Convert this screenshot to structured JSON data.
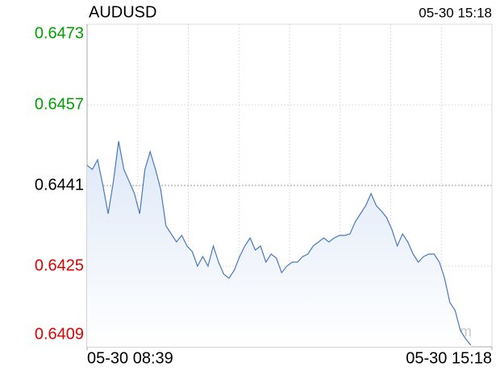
{
  "chart_data": {
    "type": "line",
    "title": "AUDUSD",
    "timestamp": "05-30 15:18",
    "watermark": "sina.com",
    "color": "#4a78bd",
    "area": true,
    "up_color": "#00a000",
    "down_color": "#e00000",
    "flat_color": "#000000",
    "reference": 0.6441,
    "ylim": [
      0.6409,
      0.6473
    ],
    "yticks": [
      0.6409,
      0.6425,
      0.6441,
      0.6457,
      0.6473
    ],
    "xlim": [
      0,
      77
    ],
    "xticks": [
      {
        "value": 0,
        "label": "05-30 08:39"
      },
      {
        "value": 77,
        "label": "05-30 15:18"
      }
    ],
    "x_grid_divisions": 8,
    "grid": true,
    "values": [
      0.6445,
      0.64442,
      0.64461,
      0.6441,
      0.64354,
      0.64418,
      0.64498,
      0.64442,
      0.64418,
      0.64394,
      0.64354,
      0.64442,
      0.64477,
      0.64442,
      0.64402,
      0.6433,
      0.64314,
      0.64298,
      0.64311,
      0.6429,
      0.64279,
      0.6425,
      0.64269,
      0.6425,
      0.6429,
      0.64258,
      0.64234,
      0.64226,
      0.64242,
      0.64269,
      0.6429,
      0.64306,
      0.64282,
      0.6429,
      0.64258,
      0.64274,
      0.64266,
      0.64237,
      0.6425,
      0.64258,
      0.64258,
      0.64269,
      0.64274,
      0.6429,
      0.64298,
      0.64306,
      0.64298,
      0.64306,
      0.64311,
      0.64311,
      0.64314,
      0.64338,
      0.64354,
      0.6437,
      0.64394,
      0.6437,
      0.64359,
      0.64346,
      0.64322,
      0.6429,
      0.64314,
      0.64298,
      0.64274,
      0.64258,
      0.64269,
      0.64274,
      0.64274,
      0.64258,
      0.64226,
      0.64178,
      0.64162,
      0.64122,
      0.64106,
      0.64093
    ]
  }
}
